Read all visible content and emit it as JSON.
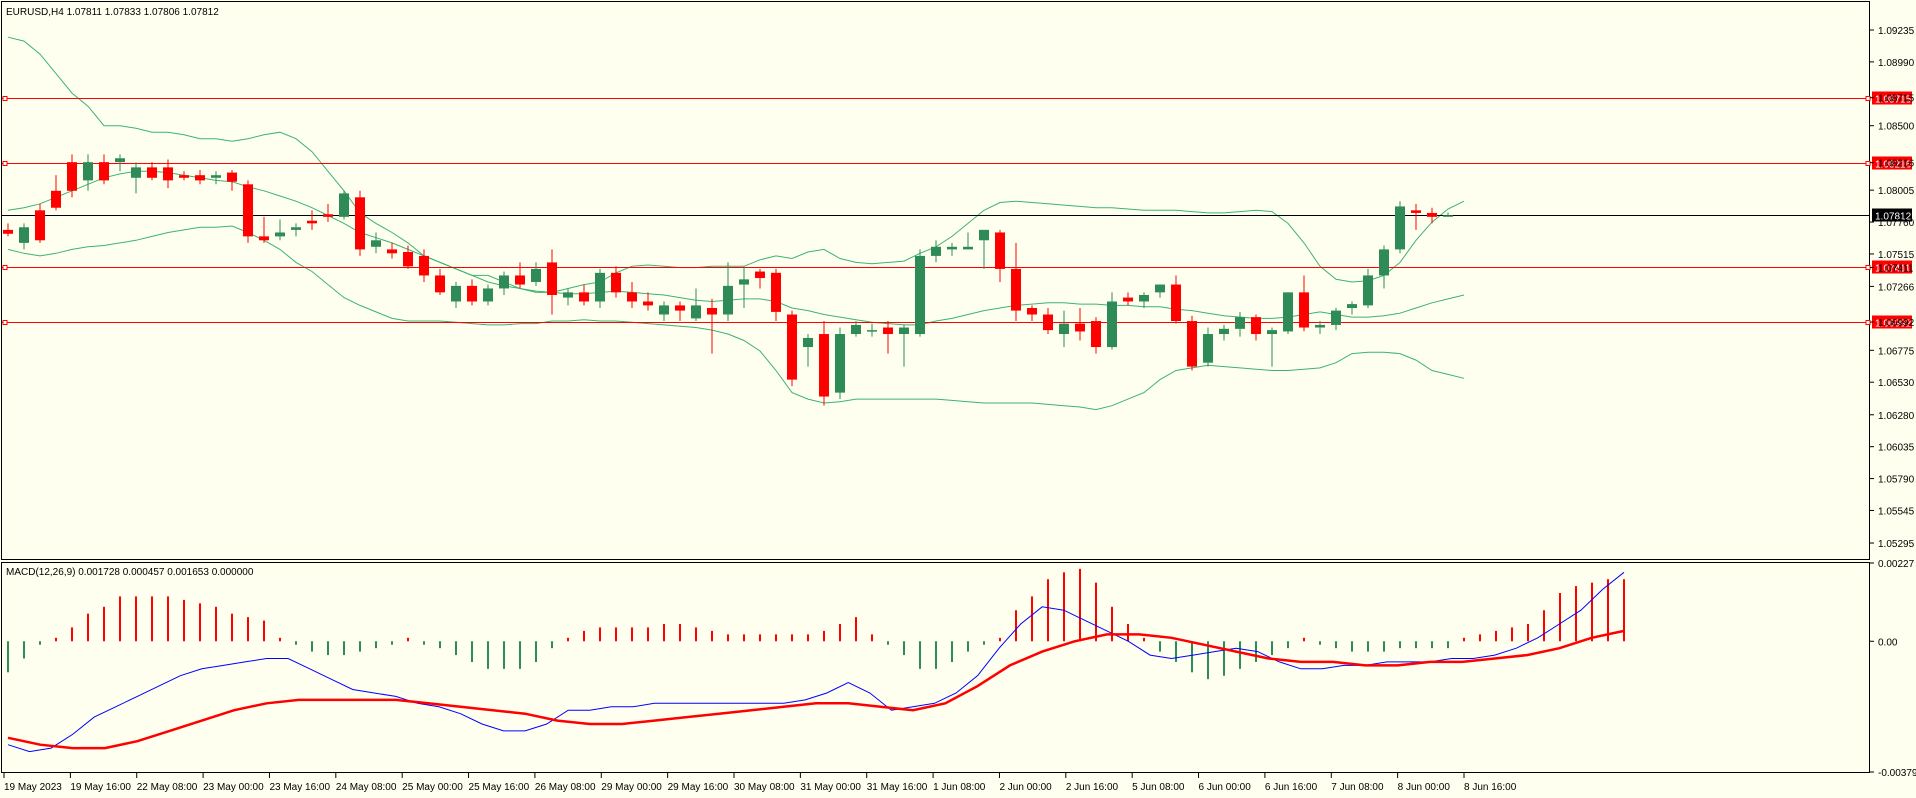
{
  "chart_data": [
    {
      "type": "candlestick",
      "title": "EURUSD,H4  1.07811 1.07833 1.07806 1.07812",
      "symbol": "EURUSD",
      "timeframe": "H4",
      "ohlc_last": {
        "open": 1.07811,
        "high": 1.07833,
        "low": 1.07806,
        "close": 1.07812
      },
      "ylim": [
        1.0518,
        1.0945
      ],
      "y_ticks": [
        "1.09235",
        "1.08990",
        "1.08715",
        "1.08500",
        "1.08216",
        "1.08005",
        "1.07760",
        "1.07515",
        "1.07411",
        "1.07266",
        "1.06992",
        "1.06775",
        "1.06530",
        "1.06280",
        "1.06035",
        "1.05790",
        "1.05545",
        "1.05295"
      ],
      "x_labels": [
        "19 May 2023",
        "19 May 16:00",
        "22 May 08:00",
        "23 May 00:00",
        "23 May 16:00",
        "24 May 08:00",
        "25 May 00:00",
        "25 May 16:00",
        "26 May 08:00",
        "29 May 00:00",
        "29 May 16:00",
        "30 May 08:00",
        "31 May 00:00",
        "31 May 16:00",
        "1 Jun 08:00",
        "2 Jun 00:00",
        "2 Jun 16:00",
        "5 Jun 08:00",
        "6 Jun 00:00",
        "6 Jun 16:00",
        "7 Jun 08:00",
        "8 Jun 00:00",
        "8 Jun 16:00"
      ],
      "candles": [
        [
          1.077,
          1.0775,
          1.0765,
          1.0767
        ],
        [
          1.076,
          1.0775,
          1.0755,
          1.0772
        ],
        [
          1.0785,
          1.079,
          1.076,
          1.0762
        ],
        [
          1.08,
          1.0812,
          1.0785,
          1.0787
        ],
        [
          1.0822,
          1.0828,
          1.0795,
          1.08
        ],
        [
          1.0808,
          1.0828,
          1.08,
          1.0822
        ],
        [
          1.0822,
          1.0828,
          1.0805,
          1.0808
        ],
        [
          1.0822,
          1.0828,
          1.0815,
          1.0825
        ],
        [
          1.081,
          1.0822,
          1.0798,
          1.0818
        ],
        [
          1.0818,
          1.0822,
          1.0808,
          1.081
        ],
        [
          1.0818,
          1.0824,
          1.0802,
          1.0808
        ],
        [
          1.0812,
          1.0815,
          1.0808,
          1.081
        ],
        [
          1.0812,
          1.0816,
          1.0805,
          1.0808
        ],
        [
          1.081,
          1.0815,
          1.0805,
          1.0812
        ],
        [
          1.0814,
          1.0816,
          1.08,
          1.0807
        ],
        [
          1.0805,
          1.0808,
          1.076,
          1.0765
        ],
        [
          1.0765,
          1.078,
          1.076,
          1.0762
        ],
        [
          1.0765,
          1.0778,
          1.0762,
          1.0768
        ],
        [
          1.077,
          1.0775,
          1.0765,
          1.0772
        ],
        [
          1.0777,
          1.0785,
          1.077,
          1.0775
        ],
        [
          1.0782,
          1.079,
          1.0776,
          1.078
        ],
        [
          1.078,
          1.08,
          1.0778,
          1.0798
        ],
        [
          1.0795,
          1.08,
          1.075,
          1.0755
        ],
        [
          1.0757,
          1.0768,
          1.0752,
          1.0762
        ],
        [
          1.0755,
          1.076,
          1.0748,
          1.0752
        ],
        [
          1.0753,
          1.0758,
          1.074,
          1.0742
        ],
        [
          1.075,
          1.0755,
          1.073,
          1.0735
        ],
        [
          1.0735,
          1.074,
          1.072,
          1.0722
        ],
        [
          1.0715,
          1.073,
          1.071,
          1.0727
        ],
        [
          1.0727,
          1.0732,
          1.0712,
          1.0715
        ],
        [
          1.0715,
          1.0728,
          1.0712,
          1.0725
        ],
        [
          1.0725,
          1.0738,
          1.072,
          1.0735
        ],
        [
          1.0735,
          1.0745,
          1.0725,
          1.0728
        ],
        [
          1.073,
          1.0745,
          1.0727,
          1.074
        ],
        [
          1.0745,
          1.0755,
          1.0705,
          1.072
        ],
        [
          1.0718,
          1.0725,
          1.0712,
          1.0722
        ],
        [
          1.0722,
          1.0728,
          1.0712,
          1.0715
        ],
        [
          1.0715,
          1.074,
          1.071,
          1.0737
        ],
        [
          1.0737,
          1.0742,
          1.0718,
          1.0722
        ],
        [
          1.0722,
          1.073,
          1.071,
          1.0715
        ],
        [
          1.0715,
          1.0722,
          1.0708,
          1.0712
        ],
        [
          1.0705,
          1.0715,
          1.07,
          1.0712
        ],
        [
          1.0712,
          1.0715,
          1.07,
          1.0708
        ],
        [
          1.0702,
          1.0725,
          1.07,
          1.0712
        ],
        [
          1.071,
          1.0717,
          1.0675,
          1.0705
        ],
        [
          1.0705,
          1.0745,
          1.07,
          1.0727
        ],
        [
          1.0728,
          1.0742,
          1.071,
          1.0732
        ],
        [
          1.0738,
          1.074,
          1.0725,
          1.0733
        ],
        [
          1.0737,
          1.074,
          1.07,
          1.0707
        ],
        [
          1.0705,
          1.0708,
          1.065,
          1.0655
        ],
        [
          1.068,
          1.069,
          1.0665,
          1.0687
        ],
        [
          1.069,
          1.07,
          1.0635,
          1.0642
        ],
        [
          1.0645,
          1.0695,
          1.064,
          1.069
        ],
        [
          1.069,
          1.07,
          1.0688,
          1.0697
        ],
        [
          1.0692,
          1.0698,
          1.0688,
          1.0693
        ],
        [
          1.0695,
          1.07,
          1.0675,
          1.069
        ],
        [
          1.069,
          1.0697,
          1.0665,
          1.0695
        ],
        [
          1.069,
          1.0755,
          1.0688,
          1.075
        ],
        [
          1.075,
          1.0762,
          1.0745,
          1.0757
        ],
        [
          1.0755,
          1.076,
          1.075,
          1.0757
        ],
        [
          1.0755,
          1.0768,
          1.0755,
          1.0757
        ],
        [
          1.0762,
          1.077,
          1.074,
          1.077
        ],
        [
          1.0768,
          1.077,
          1.073,
          1.074
        ],
        [
          1.074,
          1.076,
          1.07,
          1.0708
        ],
        [
          1.071,
          1.0712,
          1.07,
          1.0705
        ],
        [
          1.0705,
          1.071,
          1.069,
          1.0693
        ],
        [
          1.069,
          1.0708,
          1.068,
          1.0698
        ],
        [
          1.0698,
          1.071,
          1.0685,
          1.0692
        ],
        [
          1.07,
          1.0703,
          1.0675,
          1.068
        ],
        [
          1.068,
          1.0722,
          1.0678,
          1.0715
        ],
        [
          1.0718,
          1.0722,
          1.0712,
          1.0715
        ],
        [
          1.0715,
          1.0722,
          1.071,
          1.072
        ],
        [
          1.0722,
          1.0728,
          1.0718,
          1.0728
        ],
        [
          1.0728,
          1.0735,
          1.0698,
          1.07
        ],
        [
          1.07,
          1.0704,
          1.0662,
          1.0665
        ],
        [
          1.0668,
          1.0695,
          1.0665,
          1.069
        ],
        [
          1.069,
          1.0697,
          1.0685,
          1.0694
        ],
        [
          1.0694,
          1.0707,
          1.0688,
          1.0703
        ],
        [
          1.0703,
          1.0705,
          1.0685,
          1.069
        ],
        [
          1.069,
          1.0695,
          1.0665,
          1.0693
        ],
        [
          1.0692,
          1.0722,
          1.069,
          1.0722
        ],
        [
          1.0722,
          1.0735,
          1.0692,
          1.0695
        ],
        [
          1.0695,
          1.07,
          1.069,
          1.0697
        ],
        [
          1.0697,
          1.071,
          1.0693,
          1.0708
        ],
        [
          1.071,
          1.0715,
          1.0705,
          1.0713
        ],
        [
          1.0712,
          1.074,
          1.071,
          1.0735
        ],
        [
          1.0735,
          1.0758,
          1.0725,
          1.0755
        ],
        [
          1.0755,
          1.0792,
          1.0752,
          1.0788
        ],
        [
          1.0785,
          1.079,
          1.077,
          1.0783
        ],
        [
          1.0783,
          1.0787,
          1.0775,
          1.078
        ],
        [
          1.07811,
          1.07833,
          1.07806,
          1.07812
        ]
      ],
      "bollinger": {
        "period": 20,
        "upper": [
          1.0918,
          1.0915,
          1.0905,
          1.089,
          1.0875,
          1.0865,
          1.085,
          1.085,
          1.0848,
          1.0845,
          1.0845,
          1.0843,
          1.084,
          1.084,
          1.0838,
          1.084,
          1.0843,
          1.0845,
          1.084,
          1.083,
          1.0815,
          1.08,
          1.0783,
          1.0775,
          1.0768,
          1.076,
          1.075,
          1.0745,
          1.074,
          1.0735,
          1.0735,
          1.073,
          1.0725,
          1.0722,
          1.0722,
          1.0725,
          1.0728,
          1.073,
          1.0737,
          1.0742,
          1.0743,
          1.0742,
          1.0741,
          1.0741,
          1.0742,
          1.0742,
          1.0742,
          1.0747,
          1.075,
          1.0748,
          1.0753,
          1.0755,
          1.0748,
          1.0745,
          1.0744,
          1.0745,
          1.0746,
          1.0752,
          1.0757,
          1.0765,
          1.0775,
          1.0785,
          1.0791,
          1.0792,
          1.0791,
          1.079,
          1.0789,
          1.0788,
          1.0787,
          1.0787,
          1.0786,
          1.0785,
          1.0785,
          1.0785,
          1.0784,
          1.0783,
          1.0783,
          1.0784,
          1.0785,
          1.0784,
          1.0775,
          1.076,
          1.0742,
          1.0732,
          1.073,
          1.0731,
          1.0735,
          1.0745,
          1.0762,
          1.0776,
          1.0786,
          1.0792
        ],
        "middle": [
          1.0785,
          1.0787,
          1.079,
          1.0795,
          1.08,
          1.0805,
          1.081,
          1.0813,
          1.0815,
          1.0815,
          1.0814,
          1.0812,
          1.081,
          1.0808,
          1.0807,
          1.0803,
          1.08,
          1.0796,
          1.0792,
          1.0787,
          1.0781,
          1.0775,
          1.0768,
          1.0764,
          1.076,
          1.0755,
          1.075,
          1.0745,
          1.074,
          1.0735,
          1.073,
          1.0727,
          1.0725,
          1.0723,
          1.0722,
          1.0721,
          1.0721,
          1.0722,
          1.0723,
          1.0722,
          1.0721,
          1.072,
          1.0718,
          1.0716,
          1.0715,
          1.0716,
          1.0717,
          1.0717,
          1.0715,
          1.071,
          1.0708,
          1.0705,
          1.0703,
          1.0701,
          1.0699,
          1.0698,
          1.0697,
          1.0697,
          1.07,
          1.0702,
          1.0705,
          1.0708,
          1.071,
          1.0712,
          1.0713,
          1.0714,
          1.0714,
          1.0713,
          1.0713,
          1.0712,
          1.0712,
          1.0711,
          1.0711,
          1.0709,
          1.0708,
          1.0706,
          1.0704,
          1.0703,
          1.0702,
          1.0702,
          1.0703,
          1.0705,
          1.0707,
          1.0705,
          1.0703,
          1.0703,
          1.0704,
          1.0706,
          1.071,
          1.0714,
          1.0717,
          1.072
        ],
        "lower": [
          1.0755,
          1.0752,
          1.075,
          1.0752,
          1.0755,
          1.0757,
          1.0758,
          1.076,
          1.0762,
          1.0765,
          1.0768,
          1.077,
          1.0772,
          1.0772,
          1.0773,
          1.0768,
          1.0762,
          1.0755,
          1.0745,
          1.0738,
          1.0728,
          1.0718,
          1.0712,
          1.0707,
          1.0702,
          1.07,
          1.07,
          1.07,
          1.0699,
          1.0698,
          1.0697,
          1.0697,
          1.0698,
          1.0698,
          1.07,
          1.07,
          1.0701,
          1.07,
          1.07,
          1.0699,
          1.0698,
          1.0697,
          1.0696,
          1.0695,
          1.0693,
          1.069,
          1.0685,
          1.0677,
          1.0662,
          1.0645,
          1.064,
          1.0637,
          1.0638,
          1.064,
          1.064,
          1.064,
          1.064,
          1.064,
          1.064,
          1.0639,
          1.0638,
          1.0637,
          1.0637,
          1.0637,
          1.0637,
          1.0636,
          1.0635,
          1.0634,
          1.0632,
          1.0635,
          1.064,
          1.0645,
          1.0655,
          1.0662,
          1.0664,
          1.0666,
          1.0665,
          1.0664,
          1.0663,
          1.0662,
          1.0662,
          1.0663,
          1.0664,
          1.0668,
          1.0675,
          1.0676,
          1.0676,
          1.0675,
          1.067,
          1.0662,
          1.0659,
          1.0656
        ]
      },
      "horizontal_lines": [
        {
          "price": 1.08715,
          "label": "1.08715",
          "color": "#ff0000"
        },
        {
          "price": 1.08216,
          "label": "1.08216",
          "color": "#ff0000"
        },
        {
          "price": 1.07411,
          "label": "1.07411",
          "color": "#ff0000"
        },
        {
          "price": 1.06992,
          "label": "1.06992",
          "color": "#ff0000"
        }
      ],
      "current_price": {
        "price": 1.07812,
        "label": "1.07812",
        "color": "#000000"
      },
      "colors": {
        "bull": "#2e8b57",
        "bear": "#ff0000",
        "band": "#3cb371",
        "bg": "#fffff0"
      }
    },
    {
      "type": "macd",
      "title": "MACD(12,26,9) 0.001728 0.000457 0.001653 0.000000",
      "params": [
        12,
        26,
        9
      ],
      "ylim": [
        -0.003792,
        0.00227
      ],
      "y_ticks": [
        "0.00227",
        "0.00",
        "-0.003792"
      ],
      "histogram": [
        -0.0009,
        -0.0005,
        -0.0001,
        0.0001,
        0.0004,
        0.0008,
        0.001,
        0.0013,
        0.0013,
        0.0013,
        0.0013,
        0.0012,
        0.0011,
        0.001,
        0.0008,
        0.0007,
        0.0006,
        0.0001,
        -0.0001,
        -0.0003,
        -0.0004,
        -0.0004,
        -0.0003,
        -0.0002,
        -0.0001,
        0.0001,
        -0.0001,
        -0.0002,
        -0.0004,
        -0.0006,
        -0.0008,
        -0.0008,
        -0.0008,
        -0.0006,
        -0.0002,
        0.0001,
        0.0003,
        0.0004,
        0.0004,
        0.0004,
        0.0004,
        0.0005,
        0.0005,
        0.0004,
        0.0003,
        0.0002,
        0.0002,
        0.0002,
        0.0002,
        0.0002,
        0.0002,
        0.0003,
        0.0005,
        0.0007,
        0.0002,
        -0.0001,
        -0.0004,
        -0.0008,
        -0.0008,
        -0.0006,
        -0.0003,
        -0.0001,
        0.0001,
        0.0009,
        0.0013,
        0.0018,
        0.002,
        0.0021,
        0.0017,
        0.001,
        0.0005,
        0.0001,
        -0.0003,
        -0.0006,
        -0.0009,
        -0.0011,
        -0.001,
        -0.0008,
        -0.0006,
        -0.0004,
        -0.0002,
        0.0001,
        -0.0001,
        -0.0002,
        -0.0003,
        -0.0003,
        -0.0003,
        -0.0002,
        -0.0002,
        -0.0002,
        -0.0002,
        0.0001,
        0.0002,
        0.0003,
        0.0004,
        0.0005,
        0.0009,
        0.0014,
        0.0016,
        0.0017,
        0.0018,
        0.0018
      ],
      "macd_line": [
        -0.003,
        -0.0032,
        -0.0031,
        -0.0027,
        -0.0022,
        -0.0019,
        -0.0016,
        -0.0013,
        -0.001,
        -0.0008,
        -0.0007,
        -0.0006,
        -0.0005,
        -0.0005,
        -0.0008,
        -0.0011,
        -0.0014,
        -0.0015,
        -0.0016,
        -0.0018,
        -0.0019,
        -0.0021,
        -0.0024,
        -0.0026,
        -0.0026,
        -0.0024,
        -0.002,
        -0.002,
        -0.0019,
        -0.0019,
        -0.0018,
        -0.0018,
        -0.0018,
        -0.0018,
        -0.0018,
        -0.0018,
        -0.0018,
        -0.0017,
        -0.0015,
        -0.0012,
        -0.0015,
        -0.002,
        -0.0019,
        -0.0018,
        -0.0015,
        -0.001,
        -0.0002,
        0.0005,
        0.001,
        0.0009,
        0.0006,
        0.0003,
        0.0,
        -0.0004,
        -0.0005,
        -0.0004,
        -0.0003,
        -0.0002,
        -0.0003,
        -0.0006,
        -0.0008,
        -0.0008,
        -0.0007,
        -0.0007,
        -0.0006,
        -0.0006,
        -0.0006,
        -0.0005,
        -0.0005,
        -0.0004,
        -0.0002,
        0.0001,
        0.0005,
        0.0009,
        0.0015,
        0.002
      ],
      "signal_line": [
        -0.0028,
        -0.003,
        -0.0031,
        -0.0031,
        -0.0029,
        -0.0026,
        -0.0023,
        -0.002,
        -0.0018,
        -0.0017,
        -0.0017,
        -0.0017,
        -0.0017,
        -0.0018,
        -0.0019,
        -0.002,
        -0.0021,
        -0.0023,
        -0.0024,
        -0.0024,
        -0.0023,
        -0.0022,
        -0.0021,
        -0.002,
        -0.0019,
        -0.0018,
        -0.0018,
        -0.0019,
        -0.002,
        -0.0018,
        -0.0013,
        -0.0007,
        -0.0003,
        0.0,
        0.0002,
        0.0002,
        0.0001,
        -0.0001,
        -0.0003,
        -0.0005,
        -0.0006,
        -0.0006,
        -0.0007,
        -0.0007,
        -0.0006,
        -0.0006,
        -0.0005,
        -0.0004,
        -0.0002,
        0.0001,
        0.0003
      ]
    }
  ]
}
